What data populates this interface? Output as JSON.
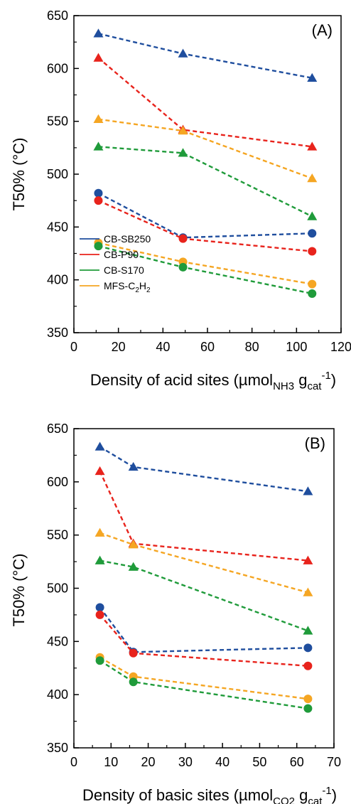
{
  "chart_data": [
    {
      "type": "line",
      "panel_label": "(A)",
      "xlabel": {
        "main": "Density of acid sites (µmol",
        "sub1": "NH3",
        "mid": " g",
        "sub2": "cat",
        "sup": "-1",
        "end": ")"
      },
      "ylabel": "T50% (°C)",
      "xlim": [
        0,
        120
      ],
      "ylim": [
        350,
        650
      ],
      "xticks": [
        0,
        20,
        40,
        60,
        80,
        100,
        120
      ],
      "yticks": [
        350,
        400,
        450,
        500,
        550,
        600,
        650
      ],
      "x": [
        11,
        49,
        107
      ],
      "series": [
        {
          "name": "CB-SB250",
          "marker": "triangle",
          "color": "#1f4e9e",
          "values": [
            633,
            614,
            591
          ]
        },
        {
          "name": "CB-P90",
          "marker": "triangle",
          "color": "#e8231c",
          "values": [
            610,
            542,
            526
          ]
        },
        {
          "name": "MFS-C2H2",
          "marker": "triangle",
          "color": "#f5a623",
          "values": [
            552,
            541,
            496
          ]
        },
        {
          "name": "CB-S170",
          "marker": "triangle",
          "color": "#1f9b3a",
          "values": [
            526,
            520,
            460
          ]
        },
        {
          "name": "CB-SB250",
          "marker": "circle",
          "color": "#1f4e9e",
          "values": [
            482,
            440,
            444
          ]
        },
        {
          "name": "CB-P90",
          "marker": "circle",
          "color": "#e8231c",
          "values": [
            475,
            439,
            427
          ]
        },
        {
          "name": "MFS-C2H2",
          "marker": "circle",
          "color": "#f5a623",
          "values": [
            435,
            417,
            396
          ]
        },
        {
          "name": "CB-S170",
          "marker": "circle",
          "color": "#1f9b3a",
          "values": [
            432,
            412,
            387
          ]
        }
      ],
      "legend": {
        "placement": "bottom-left",
        "entries": [
          {
            "label": "CB-SB250",
            "color": "#1f4e9e"
          },
          {
            "label": "CB-P90",
            "color": "#e8231c"
          },
          {
            "label": "CB-S170",
            "color": "#1f9b3a"
          },
          {
            "label_main": "MFS-C",
            "label_sub": "2",
            "label_mid": "H",
            "label_sub2": "2",
            "color": "#f5a623"
          }
        ]
      }
    },
    {
      "type": "line",
      "panel_label": "(B)",
      "xlabel": {
        "main": "Density of basic sites (µmol",
        "sub1": "CO2",
        "mid": " g",
        "sub2": "cat",
        "sup": "-1",
        "end": ")"
      },
      "ylabel": "T50% (°C)",
      "xlim": [
        0,
        70
      ],
      "ylim": [
        350,
        650
      ],
      "xticks": [
        0,
        10,
        20,
        30,
        40,
        50,
        60,
        70
      ],
      "yticks": [
        350,
        400,
        450,
        500,
        550,
        600,
        650
      ],
      "x": [
        7,
        16,
        63
      ],
      "series": [
        {
          "name": "CB-SB250",
          "marker": "triangle",
          "color": "#1f4e9e",
          "values": [
            633,
            614,
            591
          ]
        },
        {
          "name": "CB-P90",
          "marker": "triangle",
          "color": "#e8231c",
          "values": [
            610,
            542,
            526
          ]
        },
        {
          "name": "MFS-C2H2",
          "marker": "triangle",
          "color": "#f5a623",
          "values": [
            552,
            541,
            496
          ]
        },
        {
          "name": "CB-S170",
          "marker": "triangle",
          "color": "#1f9b3a",
          "values": [
            526,
            520,
            460
          ]
        },
        {
          "name": "CB-SB250",
          "marker": "circle",
          "color": "#1f4e9e",
          "values": [
            482,
            440,
            444
          ]
        },
        {
          "name": "CB-P90",
          "marker": "circle",
          "color": "#e8231c",
          "values": [
            475,
            439,
            427
          ]
        },
        {
          "name": "MFS-C2H2",
          "marker": "circle",
          "color": "#f5a623",
          "values": [
            435,
            417,
            396
          ]
        },
        {
          "name": "CB-S170",
          "marker": "circle",
          "color": "#1f9b3a",
          "values": [
            432,
            412,
            387
          ]
        }
      ]
    }
  ]
}
